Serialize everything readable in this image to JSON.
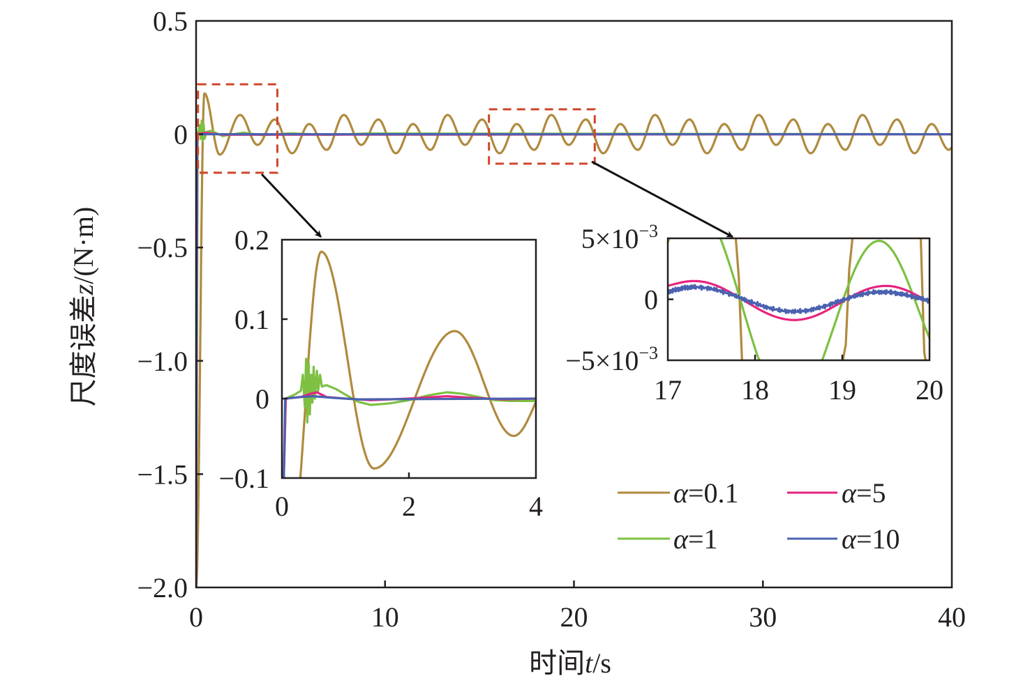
{
  "colors": {
    "alpha_0_1": "#b08a3e",
    "alpha_1": "#7dc042",
    "alpha_5": "#e6237f",
    "alpha_10": "#4a62b0",
    "zoom_box": "#d0452a",
    "axis": "#231f20"
  },
  "chart_data": [
    {
      "type": "line",
      "id": "main",
      "xlabel_prefix": "时间",
      "xlabel_var": "t",
      "xlabel_unit": "/s",
      "ylabel_prefix": "尺度误差",
      "ylabel_var": "z",
      "ylabel_unit": "/(N·m)",
      "xlim": [
        0,
        40
      ],
      "ylim": [
        -2.0,
        0.5
      ],
      "xticks": [
        0,
        10,
        20,
        30,
        40
      ],
      "xtick_labels": [
        "0",
        "10",
        "20",
        "30",
        "40"
      ],
      "yticks": [
        0.5,
        0,
        -0.5,
        -1.0,
        -1.5,
        -2.0
      ],
      "ytick_labels": [
        "0.5",
        "0",
        "−0.5",
        "−1.0",
        "−1.5",
        "−2.0"
      ],
      "grid": false,
      "legend": "bottom-right",
      "zoom_regions": [
        {
          "x": [
            0.1,
            4.3
          ],
          "y": [
            -0.17,
            0.22
          ]
        },
        {
          "x": [
            15.5,
            21.1
          ],
          "y": [
            -0.13,
            0.11
          ]
        }
      ],
      "series": [
        {
          "name": "α=0.1",
          "color_key": "alpha_0_1",
          "interp": "extrema",
          "points": [
            [
              0,
              -2
            ],
            [
              0.44,
              0.18
            ],
            [
              1.25,
              -0.09
            ],
            [
              2.33,
              0.085
            ],
            [
              3.25,
              -0.047
            ],
            [
              4.16,
              0.065
            ],
            [
              5.08,
              -0.084
            ],
            [
              5.99,
              0.045
            ],
            [
              6.91,
              -0.069
            ],
            [
              7.82,
              0.085
            ],
            [
              8.74,
              -0.047
            ],
            [
              9.65,
              0.065
            ],
            [
              10.57,
              -0.084
            ],
            [
              11.48,
              0.045
            ],
            [
              12.4,
              -0.069
            ],
            [
              13.31,
              0.085
            ],
            [
              14.23,
              -0.047
            ],
            [
              15.14,
              0.065
            ],
            [
              16.06,
              -0.084
            ],
            [
              16.97,
              0.045
            ],
            [
              17.89,
              -0.069
            ],
            [
              18.8,
              0.085
            ],
            [
              19.72,
              -0.047
            ],
            [
              20.63,
              0.065
            ],
            [
              21.55,
              -0.084
            ],
            [
              22.46,
              0.045
            ],
            [
              23.38,
              -0.069
            ],
            [
              24.29,
              0.085
            ],
            [
              25.21,
              -0.047
            ],
            [
              26.12,
              0.065
            ],
            [
              27.04,
              -0.084
            ],
            [
              27.95,
              0.045
            ],
            [
              28.87,
              -0.069
            ],
            [
              29.78,
              0.085
            ],
            [
              30.7,
              -0.047
            ],
            [
              31.61,
              0.065
            ],
            [
              32.53,
              -0.084
            ],
            [
              33.44,
              0.045
            ],
            [
              34.36,
              -0.069
            ],
            [
              35.27,
              0.085
            ],
            [
              36.19,
              -0.047
            ],
            [
              37.1,
              0.065
            ],
            [
              38.02,
              -0.084
            ],
            [
              38.93,
              0.045
            ],
            [
              39.85,
              -0.069
            ],
            [
              40,
              -0.06
            ]
          ]
        },
        {
          "name": "α=1",
          "color_key": "alpha_1",
          "interp": "linear",
          "points": [
            [
              0,
              -2
            ],
            [
              0.08,
              0
            ],
            [
              0.2,
              0.04
            ],
            [
              0.25,
              -0.02
            ],
            [
              0.3,
              0.06
            ],
            [
              0.35,
              -0.03
            ],
            [
              0.4,
              0.045
            ],
            [
              0.45,
              -0.02
            ],
            [
              0.55,
              0.01
            ],
            [
              0.8,
              0.015
            ],
            [
              1.4,
              -0.008
            ],
            [
              2.5,
              0.007
            ],
            [
              3.5,
              -0.004
            ],
            [
              5,
              0.004
            ],
            [
              7,
              -0.003
            ],
            [
              9,
              0.003
            ],
            [
              40,
              0
            ]
          ]
        },
        {
          "name": "α=5",
          "color_key": "alpha_5",
          "interp": "linear",
          "points": [
            [
              0,
              -2
            ],
            [
              0.06,
              0
            ],
            [
              0.5,
              0.006
            ],
            [
              1.4,
              -0.002
            ],
            [
              40,
              0
            ]
          ]
        },
        {
          "name": "α=10",
          "color_key": "alpha_10",
          "interp": "linear",
          "points": [
            [
              0,
              -2
            ],
            [
              0.05,
              0
            ],
            [
              40,
              0
            ]
          ]
        }
      ]
    },
    {
      "type": "line",
      "id": "inset-early",
      "xlim": [
        0,
        4
      ],
      "ylim": [
        -0.1,
        0.2
      ],
      "xticks": [
        0,
        2,
        4
      ],
      "xtick_labels": [
        "0",
        "2",
        "4"
      ],
      "yticks": [
        0.2,
        0.1,
        0,
        -0.1
      ],
      "ytick_labels": [
        "0.2",
        "0.1",
        "0",
        "−0.1"
      ],
      "grid": false,
      "series": [
        {
          "name": "α=0.1",
          "color_key": "alpha_0_1",
          "interp": "extrema",
          "points": [
            [
              0.12,
              -0.2
            ],
            [
              0.62,
              0.185
            ],
            [
              1.45,
              -0.088
            ],
            [
              2.72,
              0.085
            ],
            [
              3.65,
              -0.047
            ],
            [
              4.3,
              0.03
            ]
          ]
        },
        {
          "name": "α=1",
          "color_key": "alpha_1",
          "interp": "linear",
          "points": [
            [
              0.03,
              -0.1
            ],
            [
              0.06,
              0
            ],
            [
              0.2,
              0.005
            ],
            [
              0.3,
              0.01
            ],
            [
              0.33,
              0.03
            ],
            [
              0.36,
              -0.01
            ],
            [
              0.38,
              0.05
            ],
            [
              0.4,
              -0.03
            ],
            [
              0.42,
              0.045
            ],
            [
              0.44,
              -0.02
            ],
            [
              0.46,
              0.03
            ],
            [
              0.48,
              -0.005
            ],
            [
              0.5,
              0.04
            ],
            [
              0.52,
              0.0
            ],
            [
              0.55,
              0.035
            ],
            [
              0.57,
              0.01
            ],
            [
              0.6,
              0.03
            ],
            [
              0.63,
              0.015
            ],
            [
              0.7,
              0.017
            ],
            [
              0.85,
              0.012
            ],
            [
              1.0,
              0.005
            ],
            [
              1.2,
              -0.004
            ],
            [
              1.4,
              -0.008
            ],
            [
              1.7,
              -0.006
            ],
            [
              2.0,
              -0.002
            ],
            [
              2.3,
              0.004
            ],
            [
              2.6,
              0.008
            ],
            [
              2.85,
              0.006
            ],
            [
              3.1,
              0.002
            ],
            [
              3.35,
              -0.002
            ],
            [
              3.6,
              -0.003
            ],
            [
              4,
              -0.003
            ]
          ]
        },
        {
          "name": "α=5",
          "color_key": "alpha_5",
          "interp": "linear",
          "points": [
            [
              0.03,
              -0.1
            ],
            [
              0.06,
              0
            ],
            [
              0.3,
              0.002
            ],
            [
              0.45,
              0.006
            ],
            [
              0.55,
              0.008
            ],
            [
              0.7,
              0.002
            ],
            [
              1.0,
              0
            ],
            [
              1.4,
              -0.002
            ],
            [
              2.0,
              0
            ],
            [
              2.6,
              0.003
            ],
            [
              3.0,
              0.001
            ],
            [
              3.5,
              -0.001
            ],
            [
              4,
              0
            ]
          ]
        },
        {
          "name": "α=10",
          "color_key": "alpha_10",
          "interp": "linear",
          "points": [
            [
              0.03,
              -0.1
            ],
            [
              0.05,
              0
            ],
            [
              0.3,
              0.002
            ],
            [
              0.5,
              0.003
            ],
            [
              0.8,
              0.001
            ],
            [
              1.2,
              -0.001
            ],
            [
              4,
              0
            ]
          ]
        }
      ]
    },
    {
      "type": "line",
      "id": "inset-late",
      "xlim": [
        17,
        20
      ],
      "ylim": [
        -0.005,
        0.005
      ],
      "xticks": [
        17,
        18,
        19,
        20
      ],
      "xtick_labels": [
        "17",
        "18",
        "19",
        "20"
      ],
      "yticks": [
        0.005,
        0,
        -0.005
      ],
      "ytick_labels": [
        {
          "mant": "5×10",
          "exp": "−3"
        },
        {
          "mant": "0",
          "exp": ""
        },
        {
          "mant": "−5×10",
          "exp": "−3"
        }
      ],
      "grid": false,
      "series": [
        {
          "name": "α=0.1",
          "color_key": "alpha_0_1",
          "interp": "extrema",
          "points": [
            [
              16.5,
              -0.06
            ],
            [
              17.3,
              0.06
            ],
            [
              18.4,
              -0.07
            ],
            [
              19.6,
              0.05
            ],
            [
              20.2,
              -0.04
            ]
          ]
        },
        {
          "name": "α=1",
          "color_key": "alpha_1",
          "interp": "extrema",
          "points": [
            [
              16.3,
              -0.008
            ],
            [
              17.3,
              0.008
            ],
            [
              18.4,
              -0.009
            ],
            [
              19.42,
              0.0048
            ],
            [
              20.3,
              -0.006
            ]
          ]
        },
        {
          "name": "α=5",
          "color_key": "alpha_5",
          "interp": "extrema",
          "points": [
            [
              16.8,
              0.0009
            ],
            [
              17.3,
              0.0015
            ],
            [
              18.45,
              -0.0017
            ],
            [
              19.5,
              0.0011
            ],
            [
              20.4,
              -0.0012
            ]
          ]
        },
        {
          "name": "α=10",
          "color_key": "alpha_10",
          "interp": "extrema",
          "noisy": true,
          "points": [
            [
              16.8,
              0.0004
            ],
            [
              17.3,
              0.001
            ],
            [
              18.45,
              -0.001
            ],
            [
              19.45,
              0.0006
            ],
            [
              20.3,
              -0.0004
            ]
          ]
        }
      ]
    }
  ],
  "legend": [
    {
      "var": "α",
      "value": "=0.1",
      "color_key": "alpha_0_1"
    },
    {
      "var": "α",
      "value": "=5",
      "color_key": "alpha_5"
    },
    {
      "var": "α",
      "value": "=1",
      "color_key": "alpha_1"
    },
    {
      "var": "α",
      "value": "=10",
      "color_key": "alpha_10"
    }
  ]
}
